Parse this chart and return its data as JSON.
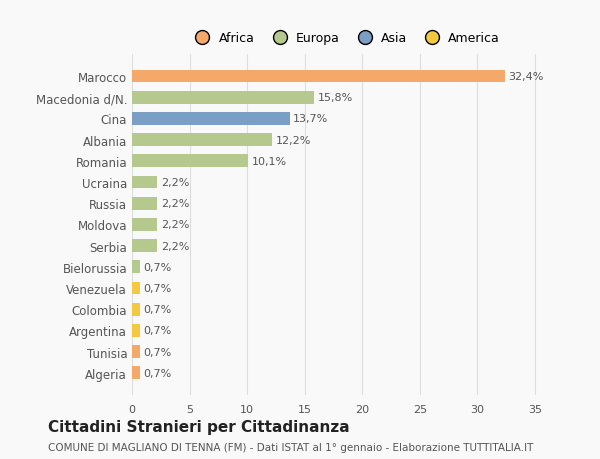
{
  "countries": [
    "Algeria",
    "Tunisia",
    "Argentina",
    "Colombia",
    "Venezuela",
    "Bielorussia",
    "Serbia",
    "Moldova",
    "Russia",
    "Ucraina",
    "Romania",
    "Albania",
    "Cina",
    "Macedonia d/N.",
    "Marocco"
  ],
  "values": [
    0.7,
    0.7,
    0.7,
    0.7,
    0.7,
    0.7,
    2.2,
    2.2,
    2.2,
    2.2,
    10.1,
    12.2,
    13.7,
    15.8,
    32.4
  ],
  "labels": [
    "0,7%",
    "0,7%",
    "0,7%",
    "0,7%",
    "0,7%",
    "0,7%",
    "2,2%",
    "2,2%",
    "2,2%",
    "2,2%",
    "10,1%",
    "12,2%",
    "13,7%",
    "15,8%",
    "32,4%"
  ],
  "continents": [
    "Africa",
    "Africa",
    "America",
    "America",
    "America",
    "Europa",
    "Europa",
    "Europa",
    "Europa",
    "Europa",
    "Europa",
    "Europa",
    "Asia",
    "Europa",
    "Africa"
  ],
  "colors": {
    "Africa": "#F4A96A",
    "Europa": "#B5C98E",
    "Asia": "#7B9EC4",
    "America": "#F5C842"
  },
  "legend_order": [
    "Africa",
    "Europa",
    "Asia",
    "America"
  ],
  "legend_colors": [
    "#F4A96A",
    "#B5C98E",
    "#7B9EC4",
    "#F5C842"
  ],
  "bar_height": 0.6,
  "xlim": [
    0,
    37
  ],
  "xticks": [
    0,
    5,
    10,
    15,
    20,
    25,
    30,
    35
  ],
  "title": "Cittadini Stranieri per Cittadinanza",
  "subtitle": "COMUNE DI MAGLIANO DI TENNA (FM) - Dati ISTAT al 1° gennaio - Elaborazione TUTTITALIA.IT",
  "bg_color": "#f9f9f9",
  "grid_color": "#dddddd",
  "text_color": "#555555"
}
